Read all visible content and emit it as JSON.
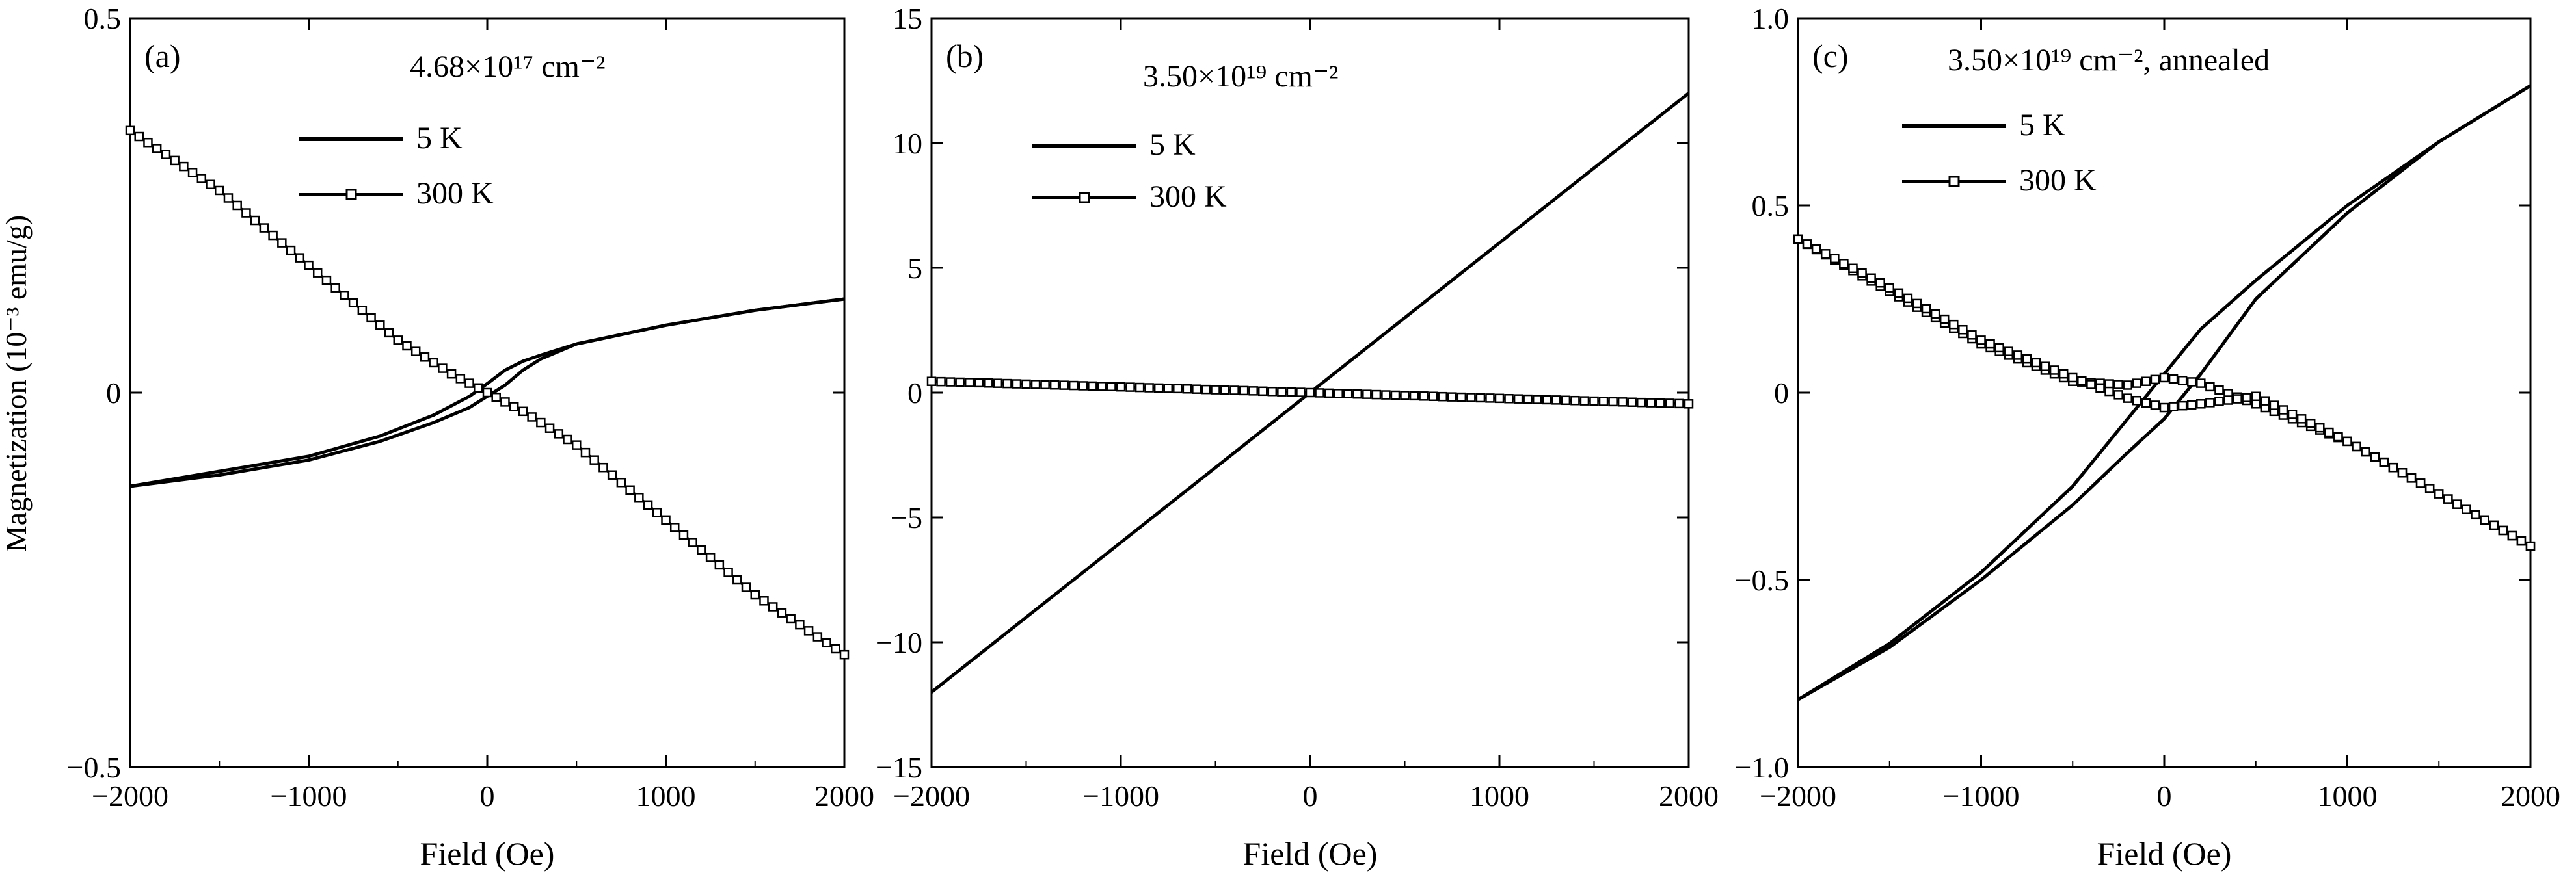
{
  "shared_ylabel": "Magnetization (10⁻³ emu/g)",
  "chart_data": [
    {
      "type": "line",
      "panel_label": "(a)",
      "title": "4.68×10¹⁷ cm⁻²",
      "xlabel": "Field (Oe)",
      "ylabel": "Magnetization (10⁻³ emu/g)",
      "xlim": [
        -2000,
        2000
      ],
      "ylim": [
        -0.5,
        0.5
      ],
      "xticks": [
        -2000,
        -1000,
        0,
        1000,
        2000
      ],
      "xtick_labels": [
        "−2000",
        "−1000",
        "0",
        "1000",
        "2000"
      ],
      "yticks": [
        -0.5,
        0,
        0.5
      ],
      "ytick_labels": [
        "−0.5",
        "0",
        "0.5"
      ],
      "legend_position": "top-center",
      "series": [
        {
          "name": "5 K",
          "marker": "none",
          "branches": [
            {
              "x": [
                -2000,
                -1500,
                -1000,
                -600,
                -300,
                -100,
                0,
                100,
                200,
                300,
                500,
                1000,
                1500,
                2000
              ],
              "y": [
                -0.125,
                -0.11,
                -0.09,
                -0.065,
                -0.04,
                -0.02,
                -0.005,
                0.01,
                0.03,
                0.045,
                0.065,
                0.09,
                0.11,
                0.125
              ]
            },
            {
              "x": [
                2000,
                1500,
                1000,
                500,
                300,
                200,
                100,
                0,
                -100,
                -300,
                -600,
                -1000,
                -1500,
                -2000
              ],
              "y": [
                0.125,
                0.11,
                0.09,
                0.065,
                0.05,
                0.042,
                0.03,
                0.012,
                -0.005,
                -0.03,
                -0.058,
                -0.085,
                -0.105,
                -0.125
              ]
            }
          ]
        },
        {
          "name": "300 K",
          "marker": "square",
          "branches": [
            {
              "x": [
                -2000,
                -1500,
                -1000,
                -500,
                -200,
                0,
                200,
                500,
                1000,
                1500,
                2000
              ],
              "y": [
                0.35,
                0.27,
                0.17,
                0.07,
                0.025,
                0.0,
                -0.025,
                -0.07,
                -0.17,
                -0.27,
                -0.35
              ]
            }
          ]
        }
      ]
    },
    {
      "type": "line",
      "panel_label": "(b)",
      "title": "3.50×10¹⁹ cm⁻²",
      "xlabel": "Field (Oe)",
      "ylabel": "",
      "xlim": [
        -2000,
        2000
      ],
      "ylim": [
        -15,
        15
      ],
      "xticks": [
        -2000,
        -1000,
        0,
        1000,
        2000
      ],
      "xtick_labels": [
        "−2000",
        "−1000",
        "0",
        "1000",
        "2000"
      ],
      "yticks": [
        -15,
        -10,
        -5,
        0,
        5,
        10,
        15
      ],
      "ytick_labels": [
        "−15",
        "−10",
        "−5",
        "0",
        "5",
        "10",
        "15"
      ],
      "legend_position": "top-left",
      "series": [
        {
          "name": "5 K",
          "marker": "none",
          "branches": [
            {
              "x": [
                -2000,
                0,
                2000
              ],
              "y": [
                -12,
                0,
                12
              ]
            }
          ]
        },
        {
          "name": "300 K",
          "marker": "square",
          "branches": [
            {
              "x": [
                -2000,
                -1000,
                0,
                1000,
                2000
              ],
              "y": [
                0.45,
                0.23,
                0.0,
                -0.23,
                -0.45
              ]
            }
          ]
        }
      ]
    },
    {
      "type": "line",
      "panel_label": "(c)",
      "title": "3.50×10¹⁹ cm⁻², annealed",
      "xlabel": "Field (Oe)",
      "ylabel": "",
      "xlim": [
        -2000,
        2000
      ],
      "ylim": [
        -1.0,
        1.0
      ],
      "xticks": [
        -2000,
        -1000,
        0,
        1000,
        2000
      ],
      "xtick_labels": [
        "−2000",
        "−1000",
        "0",
        "1000",
        "2000"
      ],
      "yticks": [
        -1.0,
        -0.5,
        0,
        0.5,
        1.0
      ],
      "ytick_labels": [
        "−1.0",
        "−0.5",
        "0",
        "0.5",
        "1.0"
      ],
      "legend_position": "top-left",
      "series": [
        {
          "name": "5 K",
          "marker": "none",
          "branches": [
            {
              "x": [
                -2000,
                -1500,
                -1000,
                -500,
                -200,
                0,
                200,
                500,
                1000,
                1500,
                2000
              ],
              "y": [
                -0.82,
                -0.68,
                -0.5,
                -0.3,
                -0.16,
                -0.07,
                0.05,
                0.25,
                0.48,
                0.67,
                0.82
              ]
            },
            {
              "x": [
                2000,
                1500,
                1000,
                500,
                200,
                0,
                -200,
                -500,
                -1000,
                -1500,
                -2000
              ],
              "y": [
                0.82,
                0.67,
                0.5,
                0.3,
                0.17,
                0.05,
                -0.07,
                -0.25,
                -0.48,
                -0.67,
                -0.82
              ]
            }
          ]
        },
        {
          "name": "300 K",
          "marker": "square",
          "branches": [
            {
              "x": [
                -2000,
                -1500,
                -1000,
                -500,
                -200,
                0,
                200,
                500,
                1000,
                1500,
                2000
              ],
              "y": [
                0.41,
                0.27,
                0.13,
                0.03,
                0.02,
                0.04,
                0.025,
                -0.03,
                -0.13,
                -0.27,
                -0.41
              ]
            },
            {
              "x": [
                2000,
                1500,
                1000,
                500,
                200,
                0,
                -200,
                -500,
                -1000,
                -1500,
                -2000
              ],
              "y": [
                -0.41,
                -0.27,
                -0.13,
                -0.01,
                -0.03,
                -0.04,
                -0.015,
                0.04,
                0.14,
                0.28,
                0.41
              ]
            }
          ]
        }
      ]
    }
  ]
}
